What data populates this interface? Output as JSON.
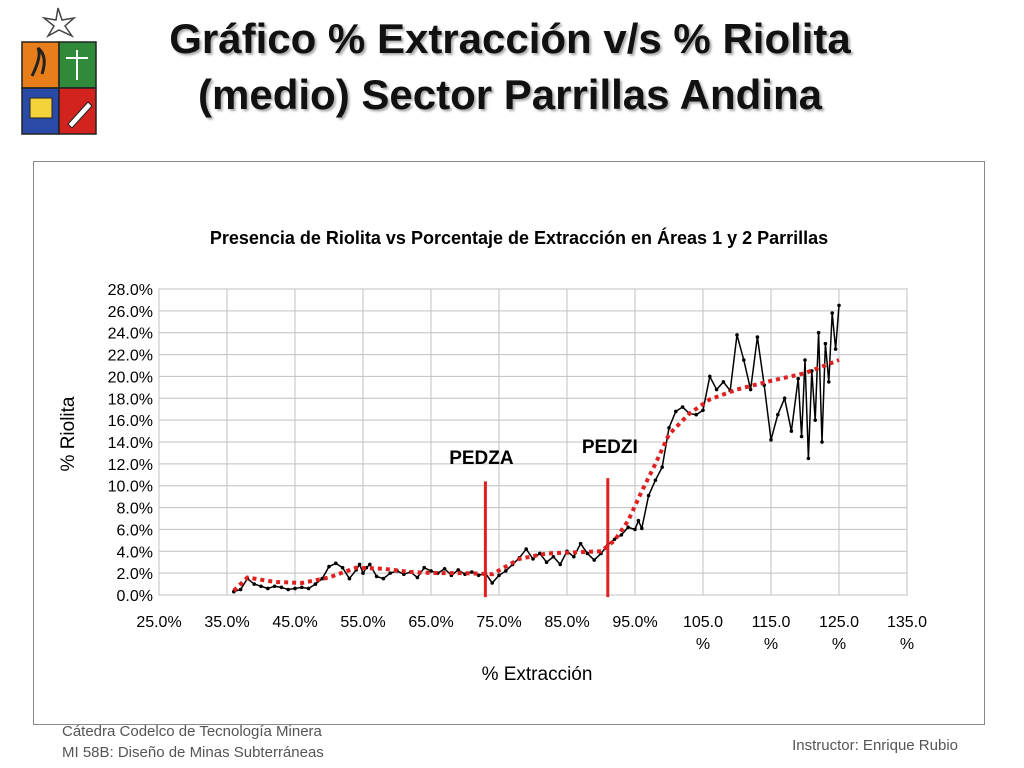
{
  "slide": {
    "title_line1": "Gráfico % Extracción v/s % Riolita",
    "title_line2": "(medio) Sector Parrillas Andina"
  },
  "footer": {
    "left_line1": "Cátedra Codelco de Tecnología Minera",
    "left_line2": "MI 58B: Diseño de Minas Subterráneas",
    "right": "Instructor: Enrique Rubio"
  },
  "colors": {
    "series_line": "#000000",
    "trend_line": "#e02020",
    "marker_lines": "#e02020",
    "gridline": "#c0c0c0"
  },
  "chart_data": {
    "type": "line",
    "title": "Presencia de Riolita vs Porcentaje de Extracción en Áreas 1 y 2 Parrillas",
    "xlabel": "% Extracción",
    "ylabel": "% Riolita",
    "xlim": [
      25,
      135
    ],
    "ylim": [
      0,
      28
    ],
    "x_ticks": [
      "25.0%",
      "35.0%",
      "45.0%",
      "55.0%",
      "65.0%",
      "75.0%",
      "85.0%",
      "95.0%",
      "105.0 %",
      "115.0 %",
      "125.0 %",
      "135.0 %"
    ],
    "y_ticks": [
      "0.0%",
      "2.0%",
      "4.0%",
      "6.0%",
      "8.0%",
      "10.0%",
      "12.0%",
      "14.0%",
      "16.0%",
      "18.0%",
      "20.0%",
      "22.0%",
      "24.0%",
      "26.0%",
      "28.0%"
    ],
    "grid": true,
    "legend": "none",
    "series": [
      {
        "x": [
          36,
          37,
          38,
          39,
          40,
          41,
          42,
          43,
          44,
          45,
          46,
          47,
          48,
          49,
          50,
          51,
          52,
          53,
          54,
          54.5,
          55,
          55.5,
          56,
          57,
          58,
          59,
          60,
          61,
          62,
          63,
          64,
          65,
          66,
          67,
          68,
          69,
          70,
          71,
          72,
          73,
          74,
          75,
          76,
          77,
          78,
          79,
          80,
          81,
          82,
          83,
          84,
          85,
          86,
          87,
          88,
          89,
          90,
          91,
          92,
          93,
          94,
          95,
          95.5,
          96,
          97,
          98,
          99,
          100,
          101,
          102,
          103,
          104,
          105,
          106,
          107,
          108,
          109,
          110,
          111,
          112,
          113,
          114,
          115,
          116,
          117,
          118,
          119,
          119.5,
          120,
          120.5,
          121,
          121.5,
          122,
          122.5,
          123,
          123.5,
          124,
          124.5,
          125
        ],
        "values": [
          0.3,
          0.5,
          1.5,
          1.0,
          0.8,
          0.6,
          0.8,
          0.7,
          0.5,
          0.6,
          0.7,
          0.6,
          1.0,
          1.5,
          2.6,
          2.9,
          2.5,
          1.5,
          2.3,
          2.8,
          2.0,
          2.5,
          2.8,
          1.7,
          1.5,
          2.0,
          2.2,
          1.9,
          2.1,
          1.6,
          2.5,
          2.2,
          2.0,
          2.4,
          1.8,
          2.3,
          1.9,
          2.1,
          1.8,
          2.0,
          1.1,
          1.8,
          2.2,
          2.8,
          3.4,
          4.2,
          3.3,
          3.8,
          3.0,
          3.5,
          2.8,
          4.0,
          3.5,
          4.7,
          3.8,
          3.2,
          3.8,
          4.6,
          5.1,
          5.5,
          6.2,
          6.0,
          6.8,
          6.1,
          9.1,
          10.5,
          11.7,
          15.3,
          16.8,
          17.2,
          16.6,
          16.5,
          16.9,
          20.0,
          18.8,
          19.5,
          18.7,
          23.8,
          21.5,
          18.8,
          23.6,
          19.2,
          14.2,
          16.5,
          18.0,
          15.0,
          19.8,
          14.5,
          21.5,
          12.5,
          20.5,
          16.0,
          24.0,
          14.0,
          23.0,
          19.5,
          25.8,
          22.5,
          26.5
        ]
      },
      {
        "x": [
          36,
          38,
          42,
          46,
          50,
          54,
          58,
          62,
          66,
          70,
          74,
          78,
          82,
          86,
          90,
          92,
          94,
          96,
          98,
          100,
          103,
          106,
          110,
          115,
          120,
          125
        ],
        "values": [
          0.4,
          1.6,
          1.2,
          1.1,
          1.6,
          2.5,
          2.4,
          2.1,
          2.0,
          2.0,
          1.9,
          3.3,
          3.8,
          3.9,
          4.0,
          5.0,
          6.8,
          9.5,
          12.0,
          14.7,
          16.6,
          17.9,
          18.8,
          19.6,
          20.3,
          21.5
        ]
      }
    ],
    "annotations": [
      {
        "label": "PEDZA",
        "x": 73
      },
      {
        "label": "PEDZI",
        "x": 91
      }
    ]
  }
}
